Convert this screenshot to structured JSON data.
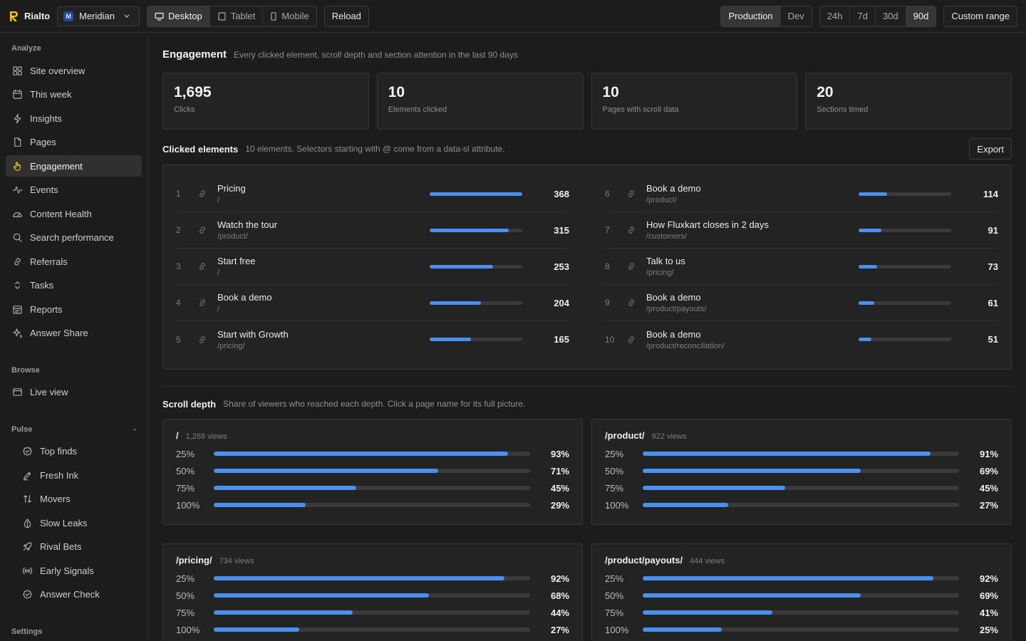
{
  "app": {
    "name": "Rialto",
    "brand_color": "#f5c518"
  },
  "site": {
    "initial": "M",
    "name": "Meridian"
  },
  "devices": [
    {
      "label": "Desktop",
      "icon": "desktop-icon",
      "active": true
    },
    {
      "label": "Tablet",
      "icon": "tablet-icon",
      "active": false
    },
    {
      "label": "Mobile",
      "icon": "mobile-icon",
      "active": false
    }
  ],
  "reload_label": "Reload",
  "environments": [
    {
      "label": "Production",
      "active": true
    },
    {
      "label": "Dev",
      "active": false
    }
  ],
  "ranges": [
    {
      "label": "24h",
      "active": false
    },
    {
      "label": "7d",
      "active": false
    },
    {
      "label": "30d",
      "active": false
    },
    {
      "label": "90d",
      "active": true
    }
  ],
  "custom_range_label": "Custom range",
  "sidebar": {
    "analyze_label": "Analyze",
    "analyze": [
      {
        "label": "Site overview",
        "icon": "grid-icon",
        "active": false
      },
      {
        "label": "This week",
        "icon": "calendar-icon",
        "active": false
      },
      {
        "label": "Insights",
        "icon": "lightning-icon",
        "active": false
      },
      {
        "label": "Pages",
        "icon": "page-icon",
        "active": false
      },
      {
        "label": "Engagement",
        "icon": "hand-pointer-icon",
        "active": true
      },
      {
        "label": "Events",
        "icon": "activity-icon",
        "active": false
      },
      {
        "label": "Content Health",
        "icon": "gauge-icon",
        "active": false
      },
      {
        "label": "Search performance",
        "icon": "search-icon",
        "active": false
      },
      {
        "label": "Referrals",
        "icon": "link-icon",
        "active": false
      },
      {
        "label": "Tasks",
        "icon": "chevrons-icon",
        "active": false
      },
      {
        "label": "Reports",
        "icon": "report-icon",
        "active": false
      },
      {
        "label": "Answer Share",
        "icon": "sparkle-icon",
        "active": false
      }
    ],
    "browse_label": "Browse",
    "browse": [
      {
        "label": "Live view",
        "icon": "window-icon",
        "active": false
      }
    ],
    "pulse_label": "Pulse",
    "pulse_toggle": "-",
    "pulse": [
      {
        "label": "Top finds",
        "icon": "badge-icon"
      },
      {
        "label": "Fresh Ink",
        "icon": "pen-icon"
      },
      {
        "label": "Movers",
        "icon": "sort-icon"
      },
      {
        "label": "Slow Leaks",
        "icon": "drop-icon"
      },
      {
        "label": "Rival Bets",
        "icon": "rocket-icon"
      },
      {
        "label": "Early Signals",
        "icon": "broadcast-icon"
      },
      {
        "label": "Answer Check",
        "icon": "check-circle-icon"
      }
    ],
    "settings_label": "Settings"
  },
  "engagement": {
    "title": "Engagement",
    "subtitle": "Every clicked element, scroll depth and section attention in the last 90 days",
    "stats": [
      {
        "value": "1,695",
        "label": "Clicks"
      },
      {
        "value": "10",
        "label": "Elements clicked"
      },
      {
        "value": "10",
        "label": "Pages with scroll data"
      },
      {
        "value": "20",
        "label": "Sections timed"
      }
    ]
  },
  "clicked": {
    "title": "Clicked elements",
    "subtitle": "10 elements. Selectors starting with @ come from a data-sl attribute.",
    "export_label": "Export",
    "max": 368,
    "items": [
      {
        "rank": "1",
        "label": "Pricing",
        "path": "/",
        "count": 368
      },
      {
        "rank": "2",
        "label": "Watch the tour",
        "path": "/product/",
        "count": 315
      },
      {
        "rank": "3",
        "label": "Start free",
        "path": "/",
        "count": 253
      },
      {
        "rank": "4",
        "label": "Book a demo",
        "path": "/",
        "count": 204
      },
      {
        "rank": "5",
        "label": "Start with Growth",
        "path": "/pricing/",
        "count": 165
      },
      {
        "rank": "6",
        "label": "Book a demo",
        "path": "/product/",
        "count": 114
      },
      {
        "rank": "7",
        "label": "How Fluxkart closes in 2 days",
        "path": "/customers/",
        "count": 91
      },
      {
        "rank": "8",
        "label": "Talk to us",
        "path": "/pricing/",
        "count": 73
      },
      {
        "rank": "9",
        "label": "Book a demo",
        "path": "/product/payouts/",
        "count": 61
      },
      {
        "rank": "10",
        "label": "Book a demo",
        "path": "/product/reconciliation/",
        "count": 51
      }
    ]
  },
  "scroll": {
    "title": "Scroll depth",
    "subtitle": "Share of viewers who reached each depth. Click a page name for its full picture.",
    "pages": [
      {
        "page": "/",
        "views": "1,268 views",
        "depths": [
          {
            "label": "25%",
            "value": 93
          },
          {
            "label": "50%",
            "value": 71
          },
          {
            "label": "75%",
            "value": 45
          },
          {
            "label": "100%",
            "value": 29
          }
        ]
      },
      {
        "page": "/product/",
        "views": "922 views",
        "depths": [
          {
            "label": "25%",
            "value": 91
          },
          {
            "label": "50%",
            "value": 69
          },
          {
            "label": "75%",
            "value": 45
          },
          {
            "label": "100%",
            "value": 27
          }
        ]
      },
      {
        "page": "/pricing/",
        "views": "734 views",
        "depths": [
          {
            "label": "25%",
            "value": 92
          },
          {
            "label": "50%",
            "value": 68
          },
          {
            "label": "75%",
            "value": 44
          },
          {
            "label": "100%",
            "value": 27
          }
        ]
      },
      {
        "page": "/product/payouts/",
        "views": "444 views",
        "depths": [
          {
            "label": "25%",
            "value": 92
          },
          {
            "label": "50%",
            "value": 69
          },
          {
            "label": "75%",
            "value": 41
          },
          {
            "label": "100%",
            "value": 25
          }
        ]
      }
    ]
  }
}
